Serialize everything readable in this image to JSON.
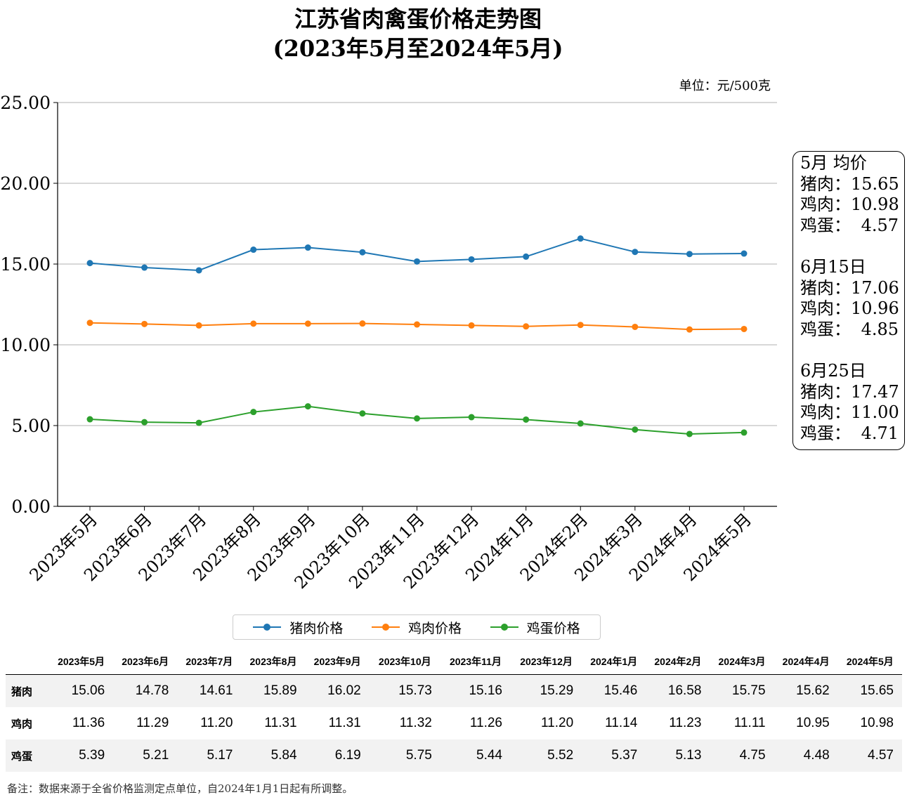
{
  "title_line1": "江苏省肉禽蛋价格走势图",
  "title_line2": "(2023年5月至2024年5月)",
  "unit_label": "单位：元/500克",
  "chart_data": {
    "type": "line",
    "categories": [
      "2023年5月",
      "2023年6月",
      "2023年7月",
      "2023年8月",
      "2023年9月",
      "2023年10月",
      "2023年11月",
      "2023年12月",
      "2024年1月",
      "2024年2月",
      "2024年3月",
      "2024年4月",
      "2024年5月"
    ],
    "series": [
      {
        "name": "猪肉价格",
        "color": "#1f77b4",
        "values": [
          15.06,
          14.78,
          14.61,
          15.89,
          16.02,
          15.73,
          15.16,
          15.29,
          15.46,
          16.58,
          15.75,
          15.62,
          15.65
        ]
      },
      {
        "name": "鸡肉价格",
        "color": "#ff7f0e",
        "values": [
          11.36,
          11.29,
          11.2,
          11.31,
          11.31,
          11.32,
          11.26,
          11.2,
          11.14,
          11.23,
          11.11,
          10.95,
          10.98
        ]
      },
      {
        "name": "鸡蛋价格",
        "color": "#2ca02c",
        "values": [
          5.39,
          5.21,
          5.17,
          5.84,
          6.19,
          5.75,
          5.44,
          5.52,
          5.37,
          5.13,
          4.75,
          4.48,
          4.57
        ]
      }
    ],
    "ylim": [
      0,
      25
    ],
    "yticks": [
      "0.00",
      "5.00",
      "10.00",
      "15.00",
      "20.00",
      "25.00"
    ],
    "grid": "horizontal",
    "legend_position": "bottom"
  },
  "sidebox": [
    {
      "heading": "5月 均价",
      "rows": [
        {
          "label": "猪肉：",
          "value": "15.65"
        },
        {
          "label": "鸡肉：",
          "value": "10.98"
        },
        {
          "label": "鸡蛋：",
          "value": "4.57"
        }
      ]
    },
    {
      "heading": "6月15日",
      "rows": [
        {
          "label": "猪肉：",
          "value": "17.06"
        },
        {
          "label": "鸡肉：",
          "value": "10.96"
        },
        {
          "label": "鸡蛋：",
          "value": "4.85"
        }
      ]
    },
    {
      "heading": "6月25日",
      "rows": [
        {
          "label": "猪肉：",
          "value": "17.47"
        },
        {
          "label": "鸡肉：",
          "value": "11.00"
        },
        {
          "label": "鸡蛋：",
          "value": "4.71"
        }
      ]
    }
  ],
  "table": {
    "rows": [
      {
        "label": "猪肉",
        "values": [
          "15.06",
          "14.78",
          "14.61",
          "15.89",
          "16.02",
          "15.73",
          "15.16",
          "15.29",
          "15.46",
          "16.58",
          "15.75",
          "15.62",
          "15.65"
        ]
      },
      {
        "label": "鸡肉",
        "values": [
          "11.36",
          "11.29",
          "11.20",
          "11.31",
          "11.31",
          "11.32",
          "11.26",
          "11.20",
          "11.14",
          "11.23",
          "11.11",
          "10.95",
          "10.98"
        ]
      },
      {
        "label": "鸡蛋",
        "values": [
          "5.39",
          "5.21",
          "5.17",
          "5.84",
          "6.19",
          "5.75",
          "5.44",
          "5.52",
          "5.37",
          "5.13",
          "4.75",
          "4.48",
          "4.57"
        ]
      }
    ]
  },
  "note": "备注：数据来源于全省价格监测定点单位，自2024年1月1日起有所调整。"
}
